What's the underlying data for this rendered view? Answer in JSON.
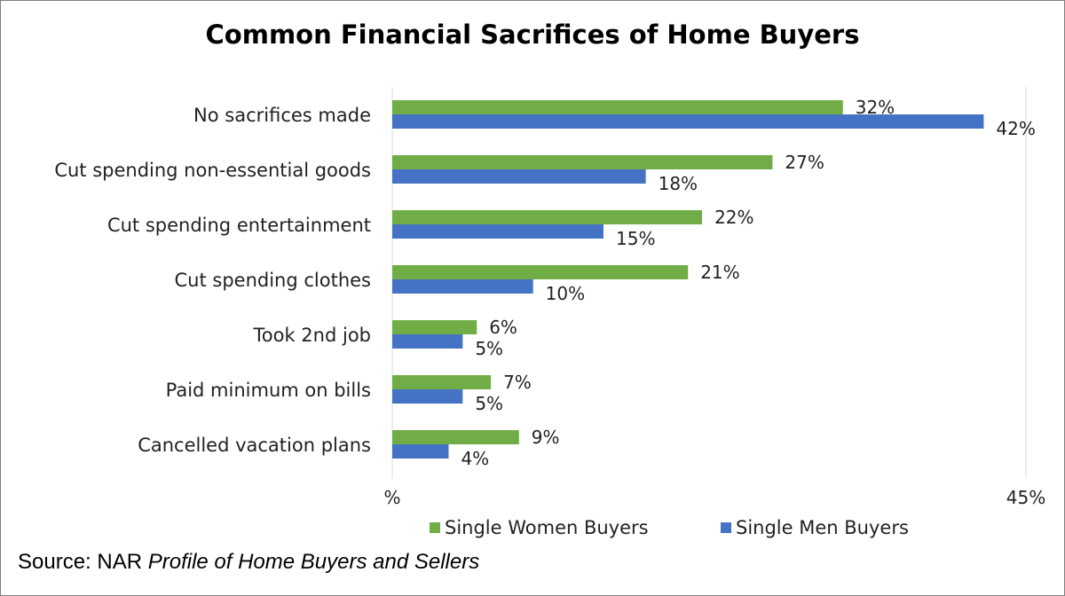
{
  "chart_data": {
    "type": "bar",
    "orientation": "horizontal",
    "title": "Common Financial Sacrifices of Home Buyers",
    "categories": [
      "No sacrifices made",
      "Cut spending non-essential goods",
      "Cut spending entertainment",
      "Cut spending clothes",
      "Took 2nd job",
      "Paid minimum on bills",
      "Cancelled vacation plans"
    ],
    "series": [
      {
        "name": "Single Women Buyers",
        "color": "#70ad47",
        "values": [
          32,
          27,
          22,
          21,
          6,
          7,
          9
        ],
        "labels": [
          "32%",
          "27%",
          "22%",
          "21%",
          "6%",
          "7%",
          "9%"
        ]
      },
      {
        "name": "Single Men Buyers",
        "color": "#4472c4",
        "values": [
          42,
          18,
          15,
          10,
          5,
          5,
          4
        ],
        "labels": [
          "42%",
          "18%",
          "15%",
          "10%",
          "5%",
          "5%",
          "4%"
        ]
      }
    ],
    "xlim": [
      0,
      45
    ],
    "x_tick_labels": [
      "%",
      "45%"
    ],
    "legend_position": "bottom"
  },
  "source": {
    "prefix": "Source: NAR ",
    "italic": "Profile of Home Buyers and Sellers"
  }
}
